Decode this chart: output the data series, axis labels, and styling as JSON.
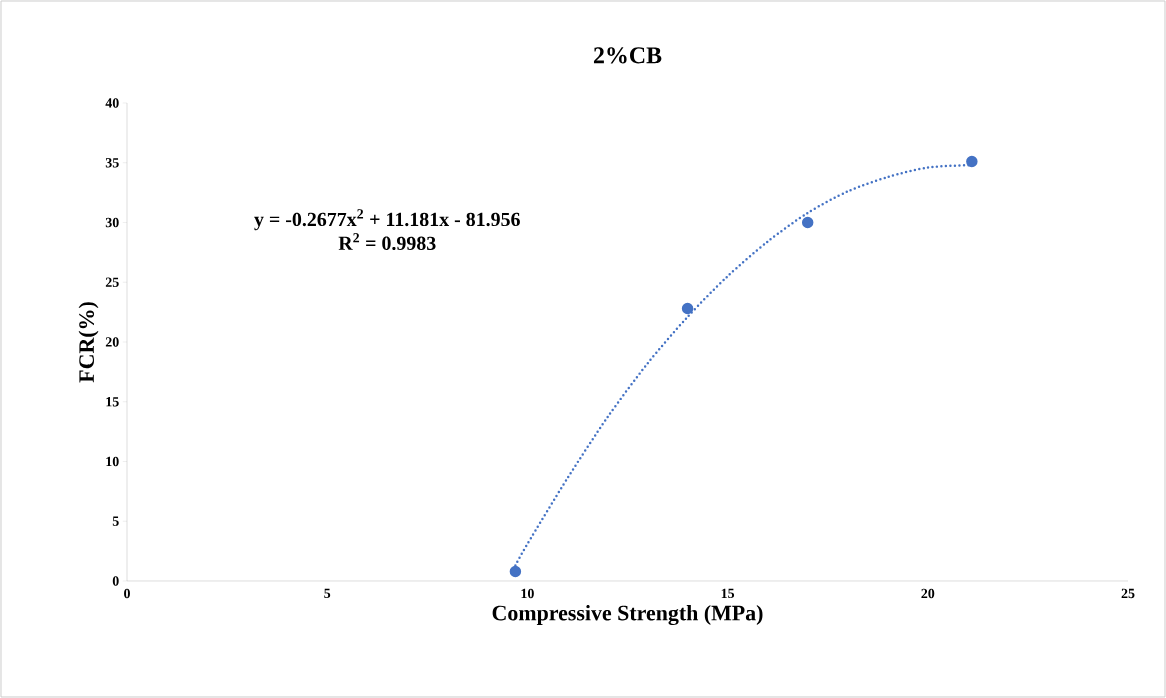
{
  "chart_data": {
    "type": "scatter",
    "title": "2%CB",
    "xlabel": "Compressive Strength (MPa)",
    "ylabel": "FCR(%)",
    "xlim": [
      0,
      25
    ],
    "xticks": [
      0,
      5,
      10,
      15,
      20,
      25
    ],
    "ylim": [
      0,
      40
    ],
    "yticks": [
      0,
      5,
      10,
      15,
      20,
      25,
      30,
      35,
      40
    ],
    "annotations": [
      "y = -0.2677x$^{2}$ + 11.181x - 81.956",
      "R$^{2}$ = 0.9983"
    ],
    "series": [
      {
        "color": "#4472c4",
        "marker": "circle",
        "x": [
          9.7,
          14.0,
          17.0,
          21.1
        ],
        "values": [
          0.8,
          22.8,
          30.0,
          35.1
        ]
      },
      {
        "type": "line",
        "color": "#4472c4",
        "line_style": "dotted",
        "marker": "none",
        "x": [
          9.7,
          10,
          11,
          12,
          13,
          14,
          15,
          16,
          17,
          18,
          19,
          20,
          21.1
        ],
        "values": [
          1.3,
          3.1,
          8.6,
          13.7,
          18.2,
          22.1,
          25.5,
          28.4,
          30.8,
          32.6,
          33.8,
          34.6,
          34.8
        ]
      }
    ]
  }
}
